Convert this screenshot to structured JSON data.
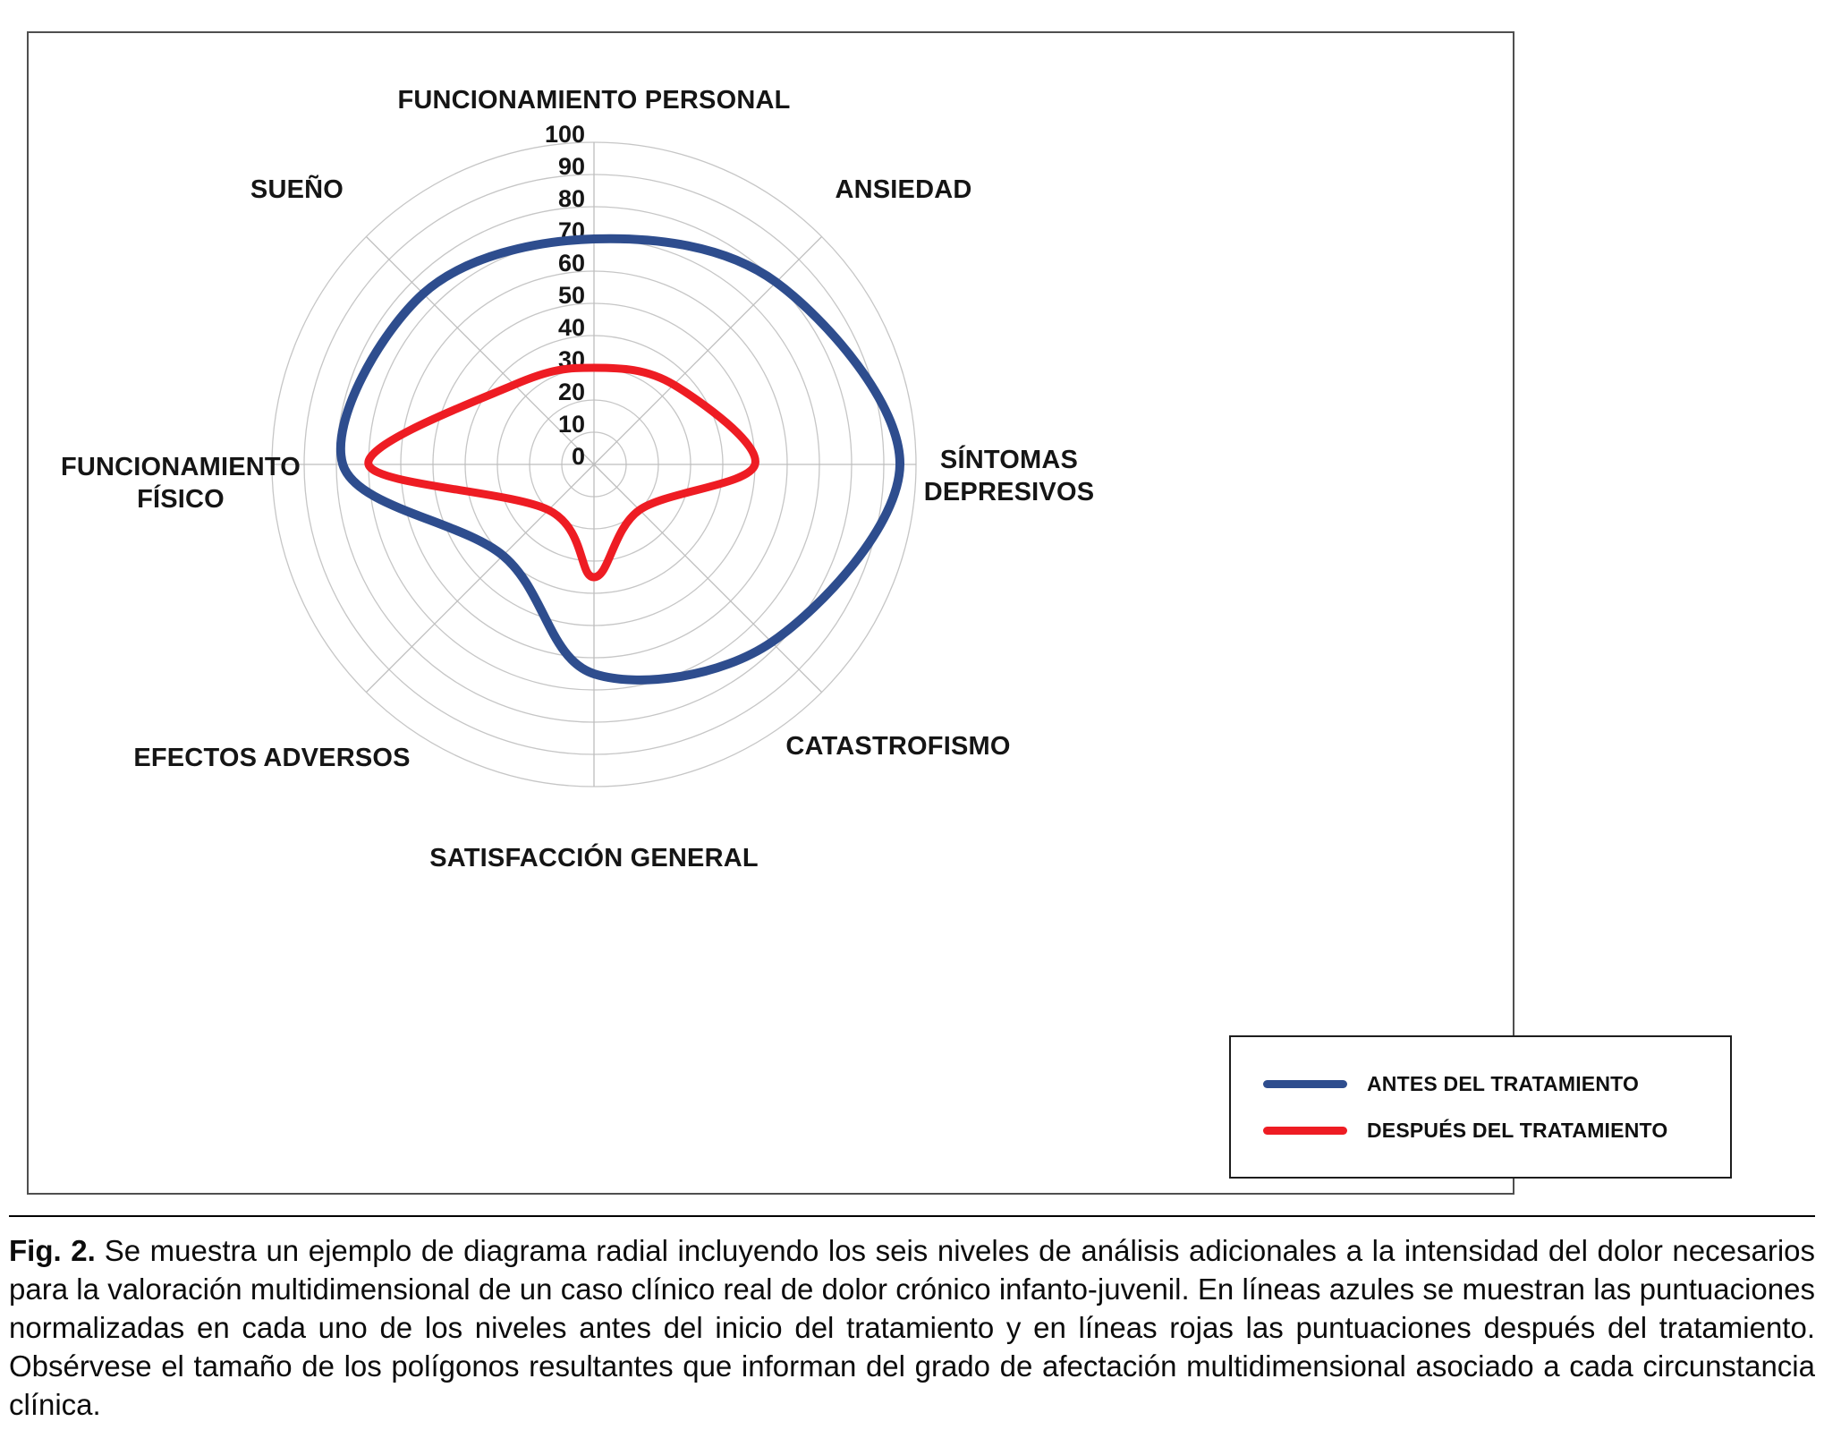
{
  "figure": {
    "caption_label": "Fig. 2.",
    "caption_text": "Se muestra un ejemplo de diagrama radial incluyendo los seis niveles de análisis adicionales a la intensidad del dolor necesarios para la valoración multidimensional de un caso clínico real de dolor crónico infanto-juvenil. En líneas azules se muestran las puntuaciones normalizadas en cada uno de los niveles antes del inicio del tratamiento y en líneas rojas las puntuaciones después del tratamiento. Obsérvese el tamaño de los polígonos resultantes que informan del grado de afectación multidimensional asociado a cada circunstancia clínica."
  },
  "chart_data": {
    "type": "radar",
    "smooth": true,
    "categories": [
      "FUNCIONAMIENTO PERSONAL",
      "ANSIEDAD",
      "SÍNTOMAS DEPRESIVOS",
      "CATASTROFISMO",
      "SATISFACCIÓN GENERAL",
      "EFECTOS ADVERSOS",
      "FUNCIONAMIENTO FÍSICO",
      "SUEÑO"
    ],
    "axis": {
      "min": 0,
      "max": 100,
      "ticks": [
        0,
        10,
        20,
        30,
        40,
        50,
        60,
        70,
        80,
        90,
        100
      ]
    },
    "grid": {
      "shape": "circular",
      "ring_color": "#c6c6c6",
      "spoke_color": "#bdbdbd"
    },
    "series": [
      {
        "name": "ANTES DEL TRATAMIENTO",
        "color": "#2e4d8e",
        "stroke_width": 10,
        "values": [
          70,
          80,
          95,
          78,
          65,
          40,
          78,
          75
        ]
      },
      {
        "name": "DESPUÉS DEL TRATAMIENTO",
        "color": "#ee1c23",
        "stroke_width": 9,
        "values": [
          30,
          35,
          50,
          20,
          35,
          20,
          70,
          35
        ]
      }
    ],
    "legend_position": "bottom-right"
  }
}
